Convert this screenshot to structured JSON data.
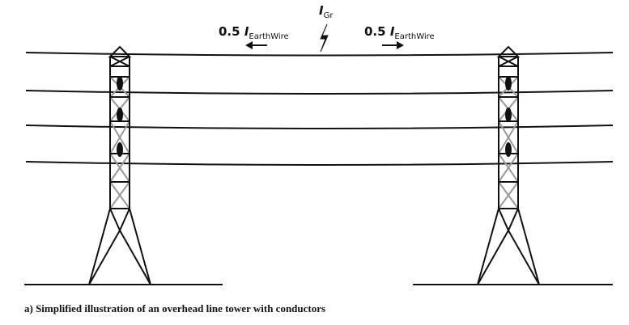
{
  "labels": {
    "left_current": {
      "coefficient": "0.5",
      "symbol": "I",
      "subscript": "EarthWire"
    },
    "right_current": {
      "coefficient": "0.5",
      "symbol": "I",
      "subscript": "EarthWire"
    },
    "fault_current": {
      "symbol": "I",
      "subscript": "Gr"
    }
  },
  "caption": "a) Simplified illustration of an overhead line tower with conductors"
}
